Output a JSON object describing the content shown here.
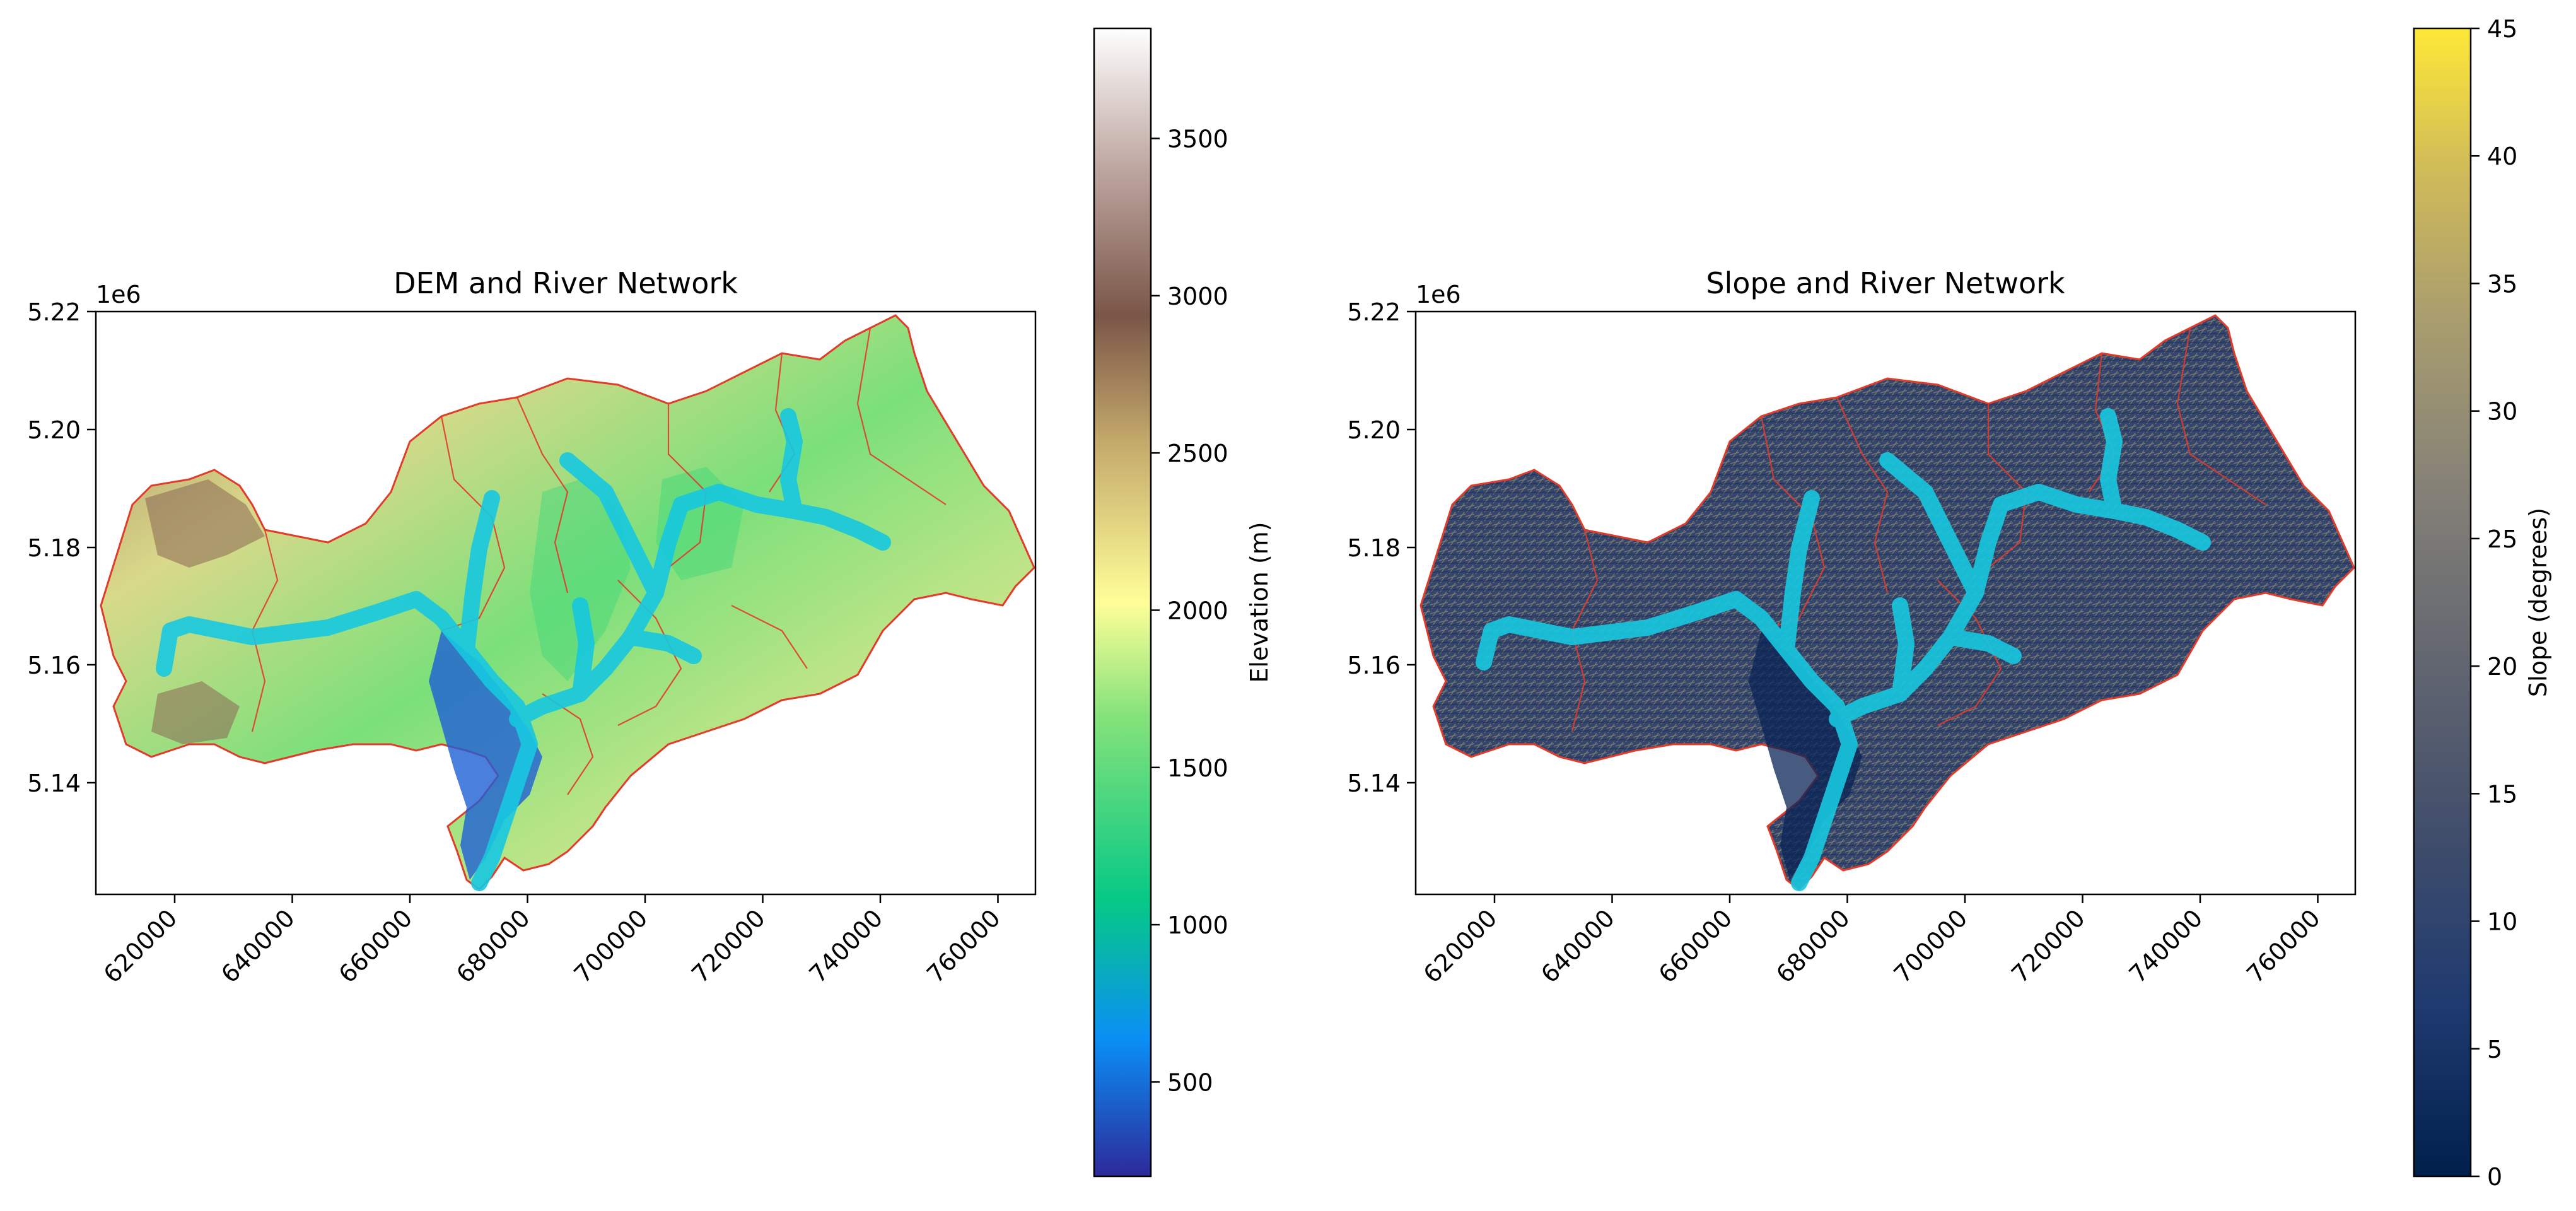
{
  "panels": [
    {
      "title": "DEM and River Network",
      "x_offset_label": "1e6",
      "y_offset_label": "1e6",
      "x_ticks": [
        "620000",
        "640000",
        "660000",
        "680000",
        "700000",
        "720000",
        "740000",
        "760000"
      ],
      "y_ticks": [
        "5.22",
        "5.20",
        "5.18",
        "5.16",
        "5.14"
      ],
      "colorbar": {
        "label": "Elevation (m)",
        "ticks": [
          "500",
          "1000",
          "1500",
          "2000",
          "2500",
          "3000",
          "3500"
        ],
        "colormap": "terrain",
        "range": [
          200,
          3850
        ]
      },
      "river_color": "#17c8e0",
      "boundary_color": "#e23b2a"
    },
    {
      "title": "Slope and River Network",
      "x_offset_label": "1e6",
      "y_offset_label": "1e6",
      "x_ticks": [
        "620000",
        "640000",
        "660000",
        "680000",
        "700000",
        "720000",
        "740000",
        "760000"
      ],
      "y_ticks": [
        "5.22",
        "5.20",
        "5.18",
        "5.16",
        "5.14"
      ],
      "colorbar": {
        "label": "Slope (degrees)",
        "ticks": [
          "0",
          "5",
          "10",
          "15",
          "20",
          "25",
          "30",
          "35",
          "40",
          "45"
        ],
        "colormap": "cividis",
        "range": [
          0,
          45
        ]
      },
      "river_color": "#17c8e0",
      "boundary_color": "#e23b2a"
    }
  ],
  "colors": {
    "terrain": [
      "#2d2a99",
      "#0a8ff5",
      "#06c986",
      "#84e27a",
      "#fffe98",
      "#c4a96b",
      "#8a6654",
      "#bfa8a2",
      "#fefefe"
    ],
    "cividis": [
      "#00204c",
      "#243d6e",
      "#4a546c",
      "#6f7070",
      "#8c8a77",
      "#ada26d",
      "#d2bd57",
      "#fee838"
    ]
  }
}
